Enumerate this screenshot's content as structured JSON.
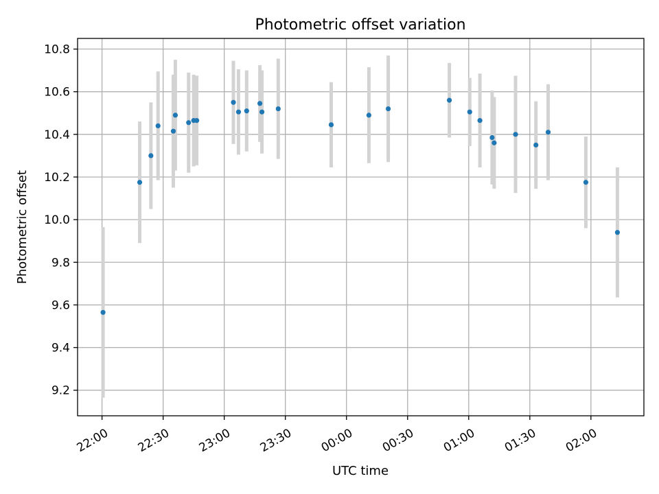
{
  "chart_data": {
    "type": "scatter",
    "title": "Photometric offset variation",
    "xlabel": "UTC time",
    "ylabel": "Photometric offset",
    "x_tick_labels": [
      "22:00",
      "22:30",
      "23:00",
      "23:30",
      "00:00",
      "00:30",
      "01:00",
      "01:30",
      "02:00"
    ],
    "x_tick_times": [
      "22:00",
      "22:30",
      "23:00",
      "23:30",
      "00:00",
      "00:30",
      "01:00",
      "01:30",
      "02:00"
    ],
    "y_ticks": [
      9.2,
      9.4,
      9.6,
      9.8,
      10.0,
      10.2,
      10.4,
      10.6,
      10.8
    ],
    "y_tick_labels": [
      "9.2",
      "9.4",
      "9.6",
      "9.8",
      "10.0",
      "10.2",
      "10.4",
      "10.6",
      "10.8"
    ],
    "xlim": [
      "21:48",
      "02:26"
    ],
    "ylim": [
      9.08,
      10.85
    ],
    "grid": true,
    "colors": {
      "point": "#1f77b4",
      "errorbar": "#d3d3d3",
      "grid": "#b0b0b0"
    },
    "points": [
      {
        "t": "22:00:30",
        "y": 9.565,
        "err": 0.4
      },
      {
        "t": "22:18:30",
        "y": 10.175,
        "err": 0.285
      },
      {
        "t": "22:24:00",
        "y": 10.3,
        "err": 0.25
      },
      {
        "t": "22:27:30",
        "y": 10.44,
        "err": 0.255
      },
      {
        "t": "22:35:00",
        "y": 10.415,
        "err": 0.265
      },
      {
        "t": "22:36:00",
        "y": 10.49,
        "err": 0.26
      },
      {
        "t": "22:42:30",
        "y": 10.455,
        "err": 0.235
      },
      {
        "t": "22:45:00",
        "y": 10.465,
        "err": 0.215
      },
      {
        "t": "22:46:30",
        "y": 10.465,
        "err": 0.21
      },
      {
        "t": "23:04:30",
        "y": 10.55,
        "err": 0.195
      },
      {
        "t": "23:07:00",
        "y": 10.505,
        "err": 0.2
      },
      {
        "t": "23:11:00",
        "y": 10.51,
        "err": 0.19
      },
      {
        "t": "23:17:30",
        "y": 10.545,
        "err": 0.18
      },
      {
        "t": "23:18:30",
        "y": 10.505,
        "err": 0.195
      },
      {
        "t": "23:26:30",
        "y": 10.52,
        "err": 0.235
      },
      {
        "t": "23:52:30",
        "y": 10.445,
        "err": 0.2
      },
      {
        "t": "00:11:00",
        "y": 10.49,
        "err": 0.225
      },
      {
        "t": "00:20:30",
        "y": 10.52,
        "err": 0.25
      },
      {
        "t": "00:50:30",
        "y": 10.56,
        "err": 0.175
      },
      {
        "t": "01:00:30",
        "y": 10.505,
        "err": 0.16
      },
      {
        "t": "01:05:30",
        "y": 10.465,
        "err": 0.22
      },
      {
        "t": "01:11:30",
        "y": 10.385,
        "err": 0.22
      },
      {
        "t": "01:12:30",
        "y": 10.36,
        "err": 0.215
      },
      {
        "t": "01:23:00",
        "y": 10.4,
        "err": 0.275
      },
      {
        "t": "01:33:00",
        "y": 10.35,
        "err": 0.205
      },
      {
        "t": "01:39:00",
        "y": 10.41,
        "err": 0.225
      },
      {
        "t": "01:57:30",
        "y": 10.175,
        "err": 0.215
      },
      {
        "t": "02:13:00",
        "y": 9.94,
        "err": 0.305
      }
    ]
  }
}
